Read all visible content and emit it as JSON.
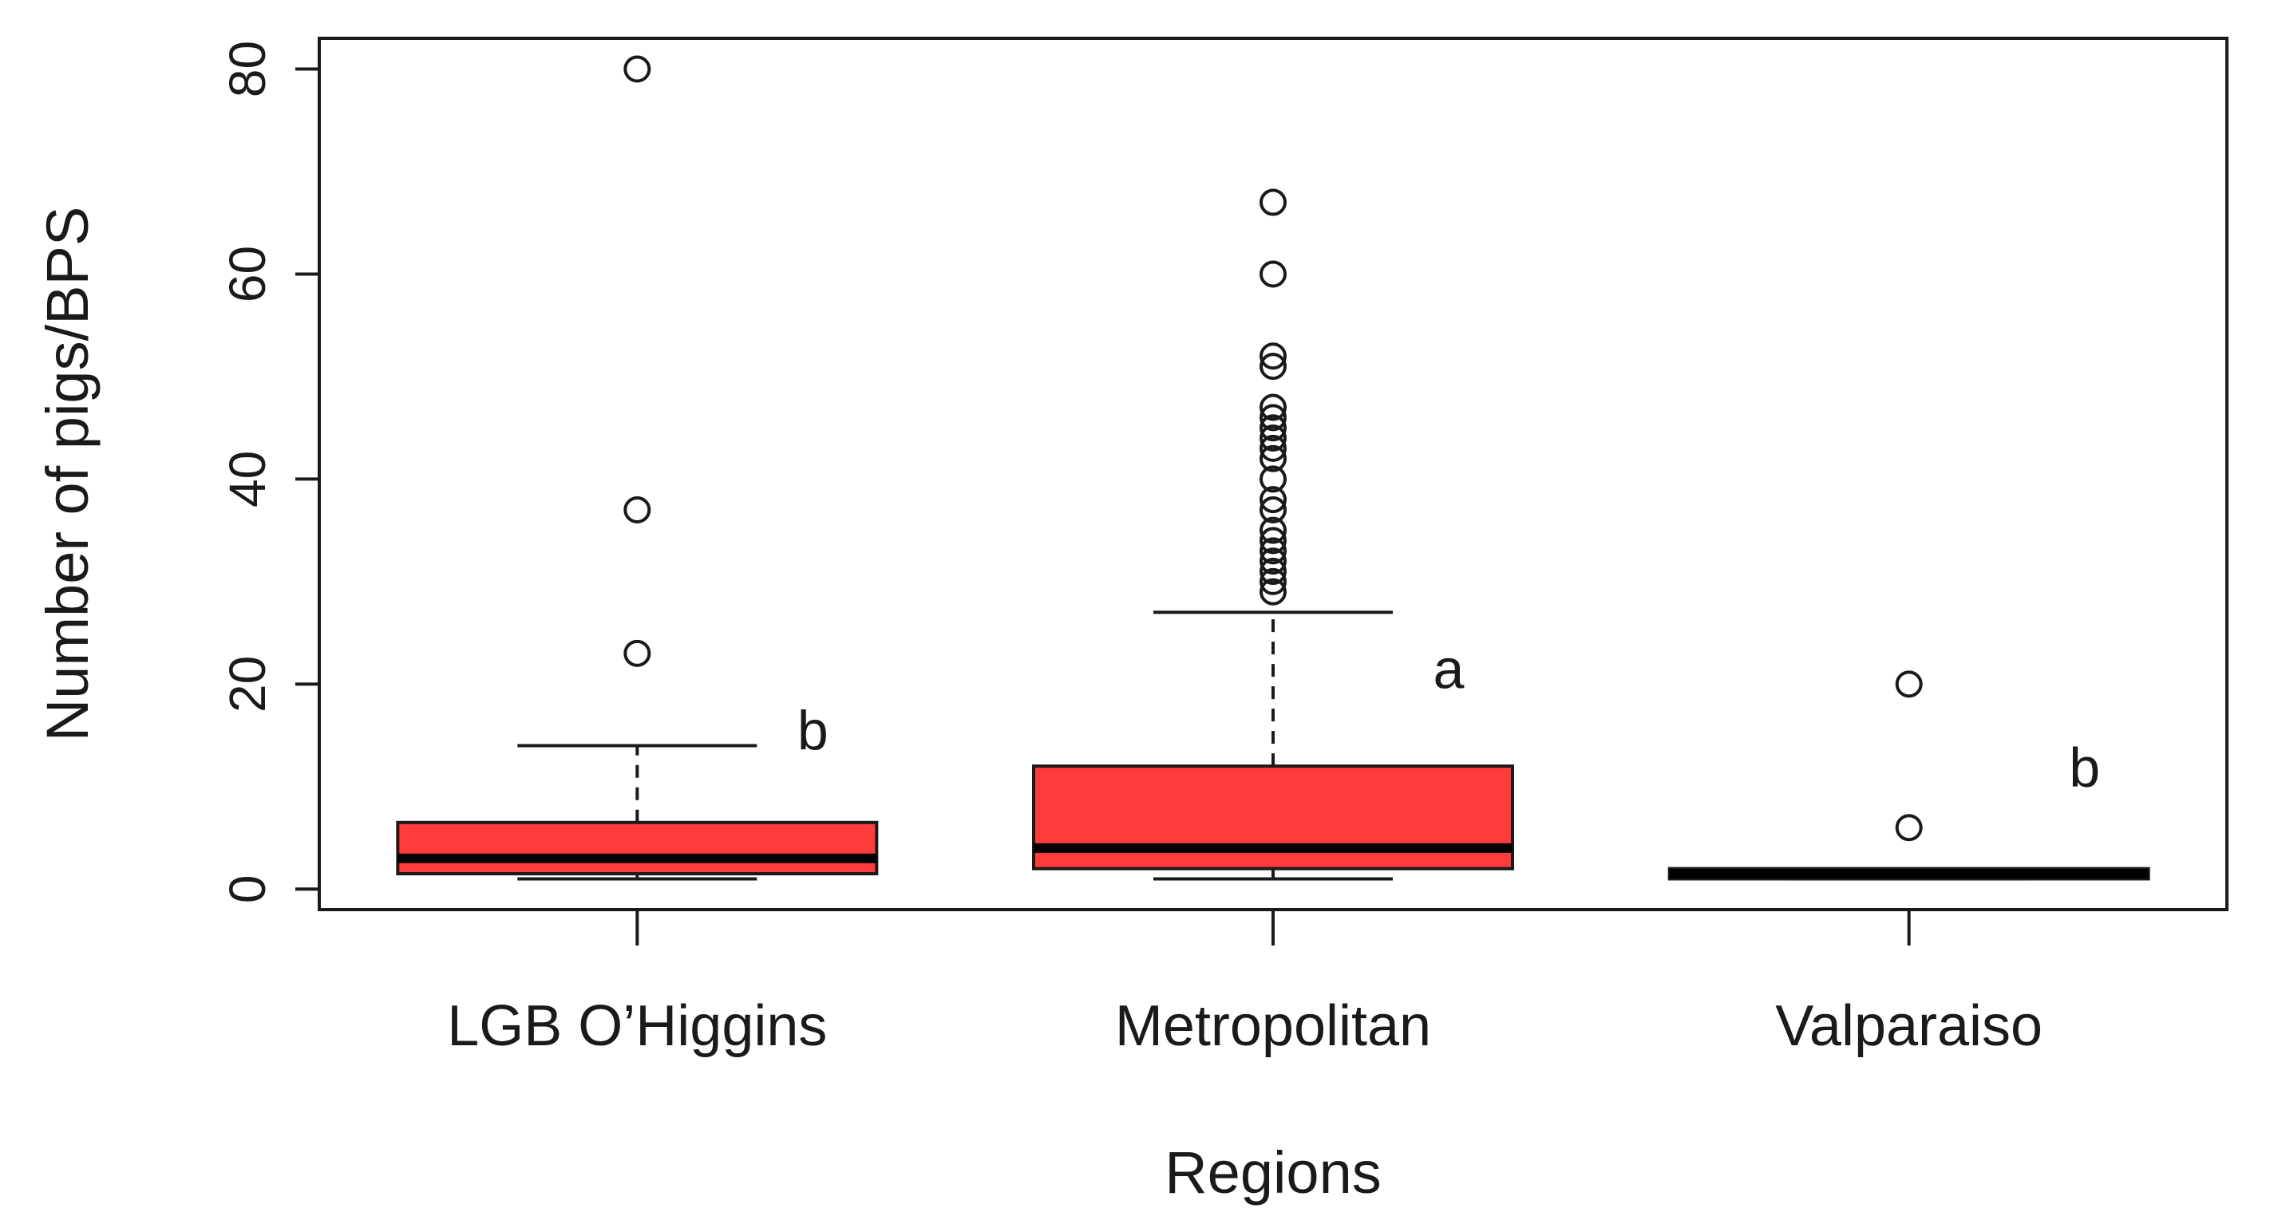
{
  "chart_data": {
    "type": "boxplot",
    "title": "",
    "xlabel": "Regions",
    "ylabel": "Number of pigs/BPS",
    "ylim": [
      -2,
      83
    ],
    "yticks": [
      0,
      20,
      40,
      60,
      80
    ],
    "box_color": "#ff3b3b",
    "categories": [
      "LGB O’Higgins",
      "Metropolitan",
      "Valparaiso"
    ],
    "series": [
      {
        "name": "LGB O’Higgins",
        "whisker_low": 1,
        "q1": 1.5,
        "median": 3,
        "q3": 6.5,
        "whisker_high": 14,
        "outliers": [
          23,
          37,
          80
        ],
        "significance": "b"
      },
      {
        "name": "Metropolitan",
        "whisker_low": 1,
        "q1": 2,
        "median": 4,
        "q3": 12,
        "whisker_high": 27,
        "outliers": [
          29,
          30,
          31,
          32,
          33,
          34,
          35,
          37,
          38,
          40,
          42,
          43,
          44,
          45,
          46,
          47,
          51,
          52,
          60,
          67
        ],
        "significance": "a"
      },
      {
        "name": "Valparaiso",
        "whisker_low": 1,
        "q1": 1,
        "median": 1.5,
        "q3": 2,
        "whisker_high": 2,
        "outliers": [
          6,
          20
        ],
        "significance": "b"
      }
    ]
  }
}
